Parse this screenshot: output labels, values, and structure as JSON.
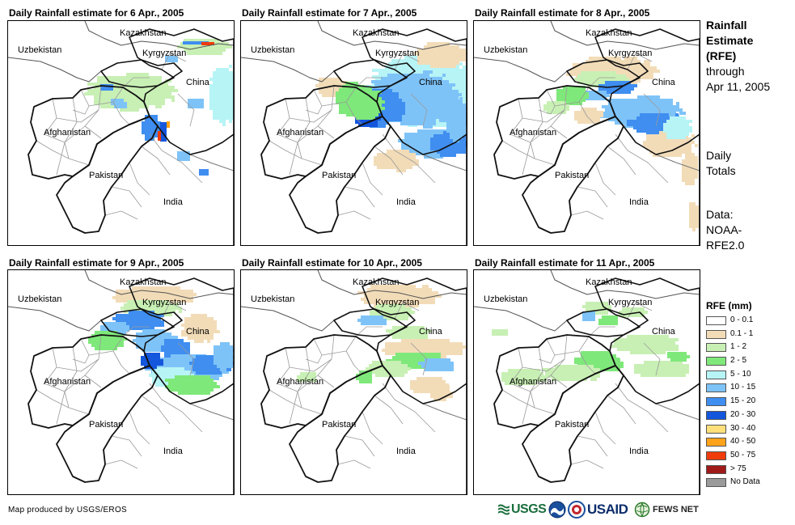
{
  "panels": [
    {
      "title": "Daily Rainfall estimate for 6 Apr., 2005",
      "labels": {
        "kazakhstan": "Kazakhstan",
        "uzbekistan": "Uzbekistan",
        "kyrgyzstan": "Kyrgyzstan",
        "china": "China",
        "afghanistan": "Afghanistan",
        "pakistan": "Pakistan",
        "india": "India"
      }
    },
    {
      "title": "Daily Rainfall estimate for 7 Apr., 2005",
      "labels": {
        "kazakhstan": "Kazakhstan",
        "uzbekistan": "Uzbekistan",
        "kyrgyzstan": "Kyrgyzstan",
        "china": "China",
        "afghanistan": "Afghanistan",
        "pakistan": "Pakistan",
        "india": "India"
      }
    },
    {
      "title": "Daily Rainfall estimate for 8 Apr., 2005",
      "labels": {
        "kazakhstan": "Kazakhstan",
        "uzbekistan": "Uzbekistan",
        "kyrgyzstan": "Kyrgyzstan",
        "china": "China",
        "afghanistan": "Afghanistan",
        "pakistan": "Pakistan",
        "india": "India"
      }
    },
    {
      "title": "Daily Rainfall estimate for 9 Apr., 2005",
      "labels": {
        "kazakhstan": "Kazakhstan",
        "uzbekistan": "Uzbekistan",
        "kyrgyzstan": "Kyrgyzstan",
        "china": "China",
        "afghanistan": "Afghanistan",
        "pakistan": "Pakistan",
        "india": "India"
      }
    },
    {
      "title": "Daily Rainfall estimate for 10 Apr., 2005",
      "labels": {
        "kazakhstan": "Kazakhstan",
        "uzbekistan": "Uzbekistan",
        "kyrgyzstan": "Kyrgyzstan",
        "china": "China",
        "afghanistan": "Afghanistan",
        "pakistan": "Pakistan",
        "india": "India"
      }
    },
    {
      "title": "Daily Rainfall estimate for 11 Apr., 2005",
      "labels": {
        "kazakhstan": "Kazakhstan",
        "uzbekistan": "Uzbekistan",
        "kyrgyzstan": "Kyrgyzstan",
        "china": "China",
        "afghanistan": "Afghanistan",
        "pakistan": "Pakistan",
        "india": "India"
      }
    }
  ],
  "side": {
    "title_lines": [
      "Rainfall",
      "Estimate",
      "(RFE)"
    ],
    "through_lines": [
      "through",
      "Apr 11, 2005"
    ],
    "daily_lines": [
      "Daily",
      "Totals"
    ],
    "data_lines": [
      "Data:",
      "NOAA-",
      "RFE2.0"
    ]
  },
  "legend": {
    "title": "RFE (mm)",
    "items": [
      {
        "label": "0 - 0.1",
        "color": "#ffffff"
      },
      {
        "label": "0.1 - 1",
        "color": "#f2dcb8"
      },
      {
        "label": "1 - 2",
        "color": "#c8f0b4"
      },
      {
        "label": "2 - 5",
        "color": "#7fe87a"
      },
      {
        "label": "5 - 10",
        "color": "#b7f4f6"
      },
      {
        "label": "10 - 15",
        "color": "#7ec3f8"
      },
      {
        "label": "15 - 20",
        "color": "#3f8ef0"
      },
      {
        "label": "20 - 30",
        "color": "#1456dc"
      },
      {
        "label": "30 - 40",
        "color": "#ffe07a"
      },
      {
        "label": "40 - 50",
        "color": "#ffa31a"
      },
      {
        "label": "50 - 75",
        "color": "#f03c0a"
      },
      {
        "label": "> 75",
        "color": "#a01a1a"
      },
      {
        "label": "No Data",
        "color": "#9a9a9a"
      }
    ]
  },
  "credit": "Map produced by USGS/EROS",
  "logos": {
    "usgs": "USGS",
    "usaid": "USAID",
    "fewsnet": "FEWS NET"
  }
}
